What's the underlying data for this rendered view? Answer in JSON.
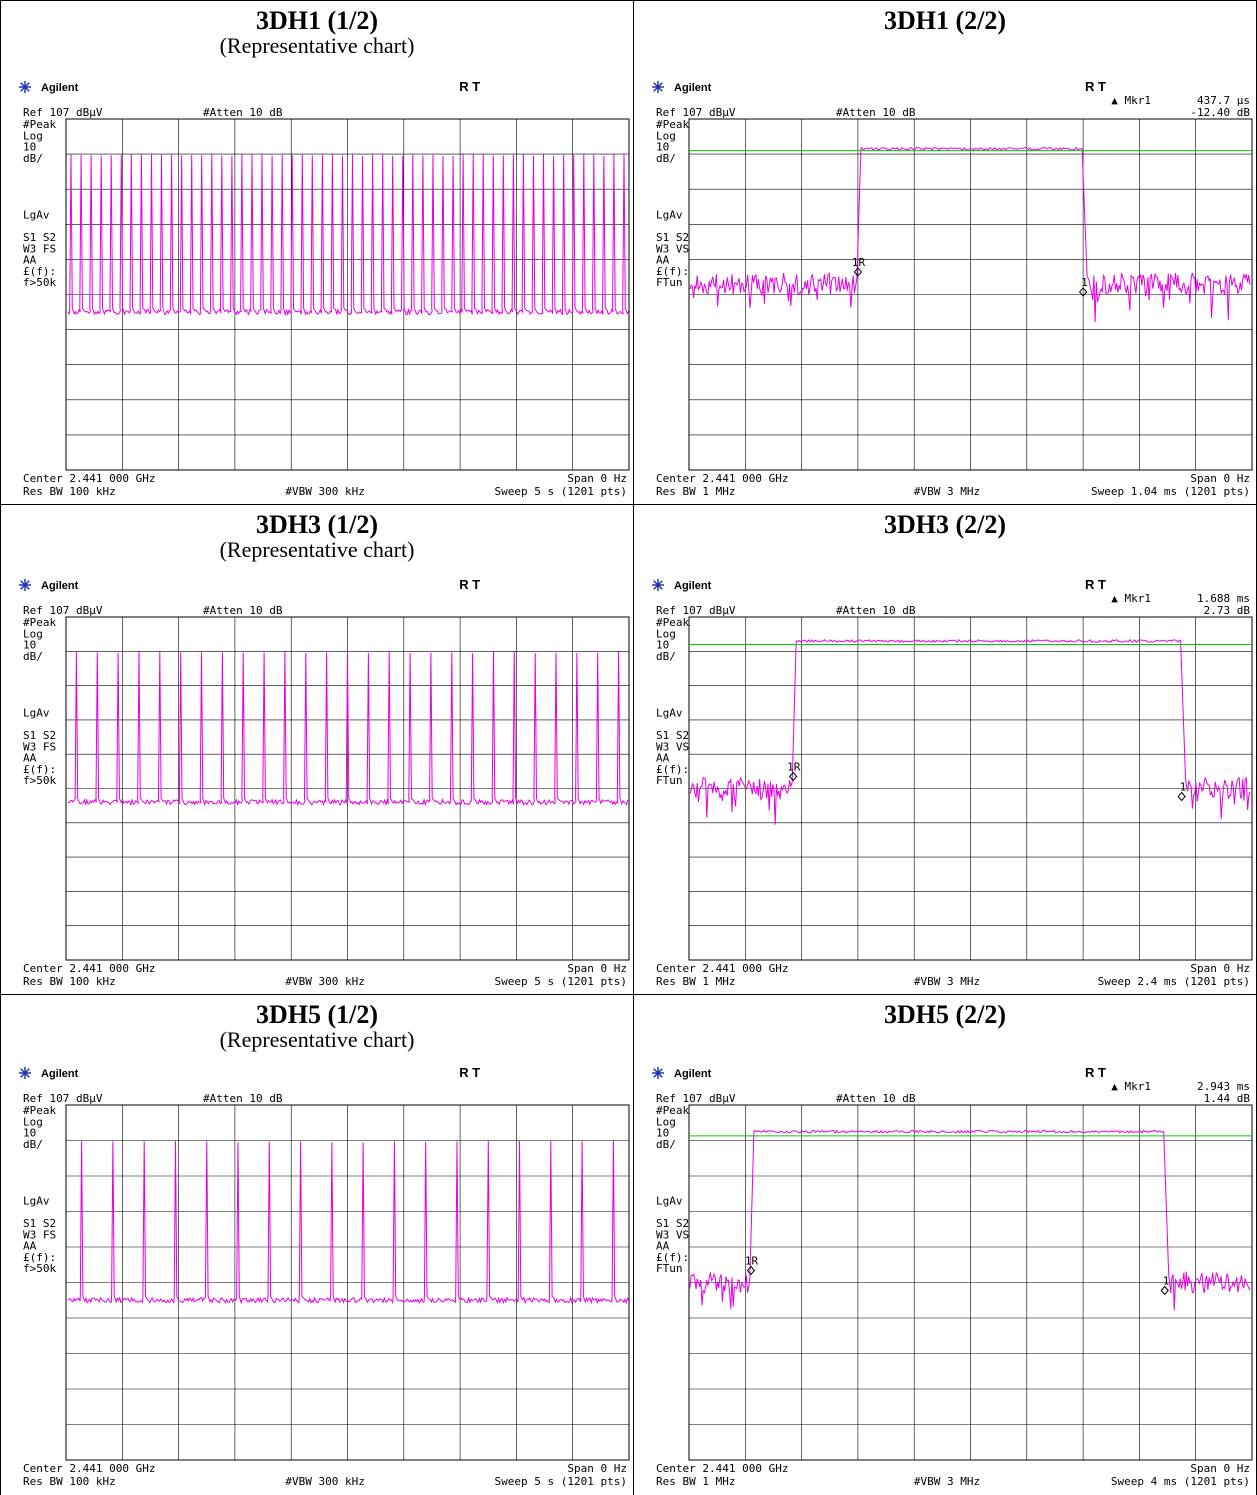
{
  "colors": {
    "trace": "#e600e6",
    "line": "#00cc00",
    "grid": "#000000"
  },
  "panels": [
    {
      "title": "3DH1 (1/2)",
      "subtitle": "(Representative chart)",
      "instrument": {
        "brand": "Agilent",
        "rt": "R  T",
        "marker_label": "",
        "marker_value": "",
        "marker_db": "",
        "ref": "Ref 107 dBµV",
        "atten": "#Atten 10 dB",
        "side": [
          "#Peak",
          "Log",
          "10",
          "dB/",
          "",
          "",
          "",
          "",
          "LgAv",
          "",
          "S1  S2",
          "W3  FS",
          "   AA",
          "£(f):",
          "f>50k"
        ],
        "center": "Center 2.441 000 GHz",
        "span": "Span 0 Hz",
        "resbw": "Res BW 100 kHz",
        "vbw": "#VBW 300 kHz",
        "sweep": "Sweep 5 s (1201 pts)"
      }
    },
    {
      "title": "3DH1 (2/2)",
      "subtitle": "",
      "instrument": {
        "brand": "Agilent",
        "rt": "R  T",
        "marker_label": "Mkr1",
        "marker_value": "437.7 µs",
        "marker_db": "-12.40 dB",
        "ref": "Ref 107 dBµV",
        "atten": "#Atten 10 dB",
        "side": [
          "#Peak",
          "Log",
          "10",
          "dB/",
          "",
          "",
          "",
          "",
          "LgAv",
          "",
          "S1  S2",
          "W3  VS",
          "   AA",
          "£(f):",
          "FTun"
        ],
        "center": "Center 2.441 000 GHz",
        "span": "Span 0 Hz",
        "resbw": "Res BW 1 MHz",
        "vbw": "#VBW 3 MHz",
        "sweep": "Sweep 1.04 ms (1201 pts)"
      }
    },
    {
      "title": "3DH3 (1/2)",
      "subtitle": "(Representative chart)",
      "instrument": {
        "brand": "Agilent",
        "rt": "R  T",
        "marker_label": "",
        "marker_value": "",
        "marker_db": "",
        "ref": "Ref 107 dBµV",
        "atten": "#Atten 10 dB",
        "side": [
          "#Peak",
          "Log",
          "10",
          "dB/",
          "",
          "",
          "",
          "",
          "LgAv",
          "",
          "S1  S2",
          "W3  FS",
          "   AA",
          "£(f):",
          "f>50k"
        ],
        "center": "Center 2.441 000 GHz",
        "span": "Span 0 Hz",
        "resbw": "Res BW 100 kHz",
        "vbw": "#VBW 300 kHz",
        "sweep": "Sweep 5 s (1201 pts)"
      }
    },
    {
      "title": "3DH3 (2/2)",
      "subtitle": "",
      "instrument": {
        "brand": "Agilent",
        "rt": "R  T",
        "marker_label": "Mkr1",
        "marker_value": "1.688 ms",
        "marker_db": "2.73 dB",
        "ref": "Ref 107 dBµV",
        "atten": "#Atten 10 dB",
        "side": [
          "#Peak",
          "Log",
          "10",
          "dB/",
          "",
          "",
          "",
          "",
          "LgAv",
          "",
          "S1  S2",
          "W3  VS",
          "   AA",
          "£(f):",
          "FTun"
        ],
        "center": "Center 2.441 000 GHz",
        "span": "Span 0 Hz",
        "resbw": "Res BW 1 MHz",
        "vbw": "#VBW 3 MHz",
        "sweep": "Sweep 2.4 ms (1201 pts)"
      }
    },
    {
      "title": "3DH5 (1/2)",
      "subtitle": "(Representative chart)",
      "instrument": {
        "brand": "Agilent",
        "rt": "R  T",
        "marker_label": "",
        "marker_value": "",
        "marker_db": "",
        "ref": "Ref 107 dBµV",
        "atten": "#Atten 10 dB",
        "side": [
          "#Peak",
          "Log",
          "10",
          "dB/",
          "",
          "",
          "",
          "",
          "LgAv",
          "",
          "S1  S2",
          "W3  FS",
          "   AA",
          "£(f):",
          "f>50k"
        ],
        "center": "Center 2.441 000 GHz",
        "span": "Span 0 Hz",
        "resbw": "Res BW 100 kHz",
        "vbw": "#VBW 300 kHz",
        "sweep": "Sweep 5 s (1201 pts)"
      }
    },
    {
      "title": "3DH5 (2/2)",
      "subtitle": "",
      "instrument": {
        "brand": "Agilent",
        "rt": "R  T",
        "marker_label": "Mkr1",
        "marker_value": "2.943 ms",
        "marker_db": "1.44 dB",
        "ref": "Ref 107 dBµV",
        "atten": "#Atten 10 dB",
        "side": [
          "#Peak",
          "Log",
          "10",
          "dB/",
          "",
          "",
          "",
          "",
          "LgAv",
          "",
          "S1  S2",
          "W3  VS",
          "   AA",
          "£(f):",
          "FTun"
        ],
        "center": "Center 2.441 000 GHz",
        "span": "Span 0 Hz",
        "resbw": "Res BW 1 MHz",
        "vbw": "#VBW 3 MHz",
        "sweep": "Sweep 4 ms (1201 pts)"
      }
    }
  ],
  "chart_data": [
    {
      "type": "line",
      "title": "3DH1 (1/2)",
      "xlabel": "",
      "ylabel": "",
      "ref_level": 107,
      "scale_db_per_div": 10,
      "grid": true,
      "trace": "pulse_train",
      "pulse_count": 56,
      "pulse_top_db": 97,
      "noise_floor_db": 52,
      "sweep": "5 s"
    },
    {
      "type": "line",
      "title": "3DH1 (2/2)",
      "xlabel": "",
      "ylabel": "",
      "ref_level": 107,
      "scale_db_per_div": 10,
      "grid": true,
      "trace": "single_burst",
      "burst_start_div": 3.0,
      "burst_end_div": 7.0,
      "pulse_top_db": 98.5,
      "noise_floor_db": 60,
      "threshold_db": 98,
      "delta_marker": "437.7 µs",
      "delta_db": -12.4,
      "sweep": "1.04 ms"
    },
    {
      "type": "line",
      "title": "3DH3 (1/2)",
      "xlabel": "",
      "ylabel": "",
      "ref_level": 107,
      "scale_db_per_div": 10,
      "grid": true,
      "trace": "pulse_train",
      "pulse_count": 27,
      "pulse_top_db": 97,
      "noise_floor_db": 53,
      "sweep": "5 s"
    },
    {
      "type": "line",
      "title": "3DH3 (2/2)",
      "xlabel": "",
      "ylabel": "",
      "ref_level": 107,
      "scale_db_per_div": 10,
      "grid": true,
      "trace": "single_burst",
      "burst_start_div": 1.85,
      "burst_end_div": 8.75,
      "pulse_top_db": 100,
      "noise_floor_db": 57,
      "threshold_db": 99,
      "delta_marker": "1.688 ms",
      "delta_db": 2.73,
      "sweep": "2.4 ms"
    },
    {
      "type": "line",
      "title": "3DH5 (1/2)",
      "xlabel": "",
      "ylabel": "",
      "ref_level": 107,
      "scale_db_per_div": 10,
      "grid": true,
      "trace": "pulse_train",
      "pulse_count": 18,
      "pulse_top_db": 97,
      "noise_floor_db": 52,
      "sweep": "5 s"
    },
    {
      "type": "line",
      "title": "3DH5 (2/2)",
      "xlabel": "",
      "ylabel": "",
      "ref_level": 107,
      "scale_db_per_div": 10,
      "grid": true,
      "trace": "single_burst",
      "burst_start_div": 1.1,
      "burst_end_div": 8.45,
      "pulse_top_db": 99.5,
      "noise_floor_db": 57,
      "threshold_db": 98.3,
      "delta_marker": "2.943 ms",
      "delta_db": 1.44,
      "sweep": "4 ms"
    }
  ]
}
